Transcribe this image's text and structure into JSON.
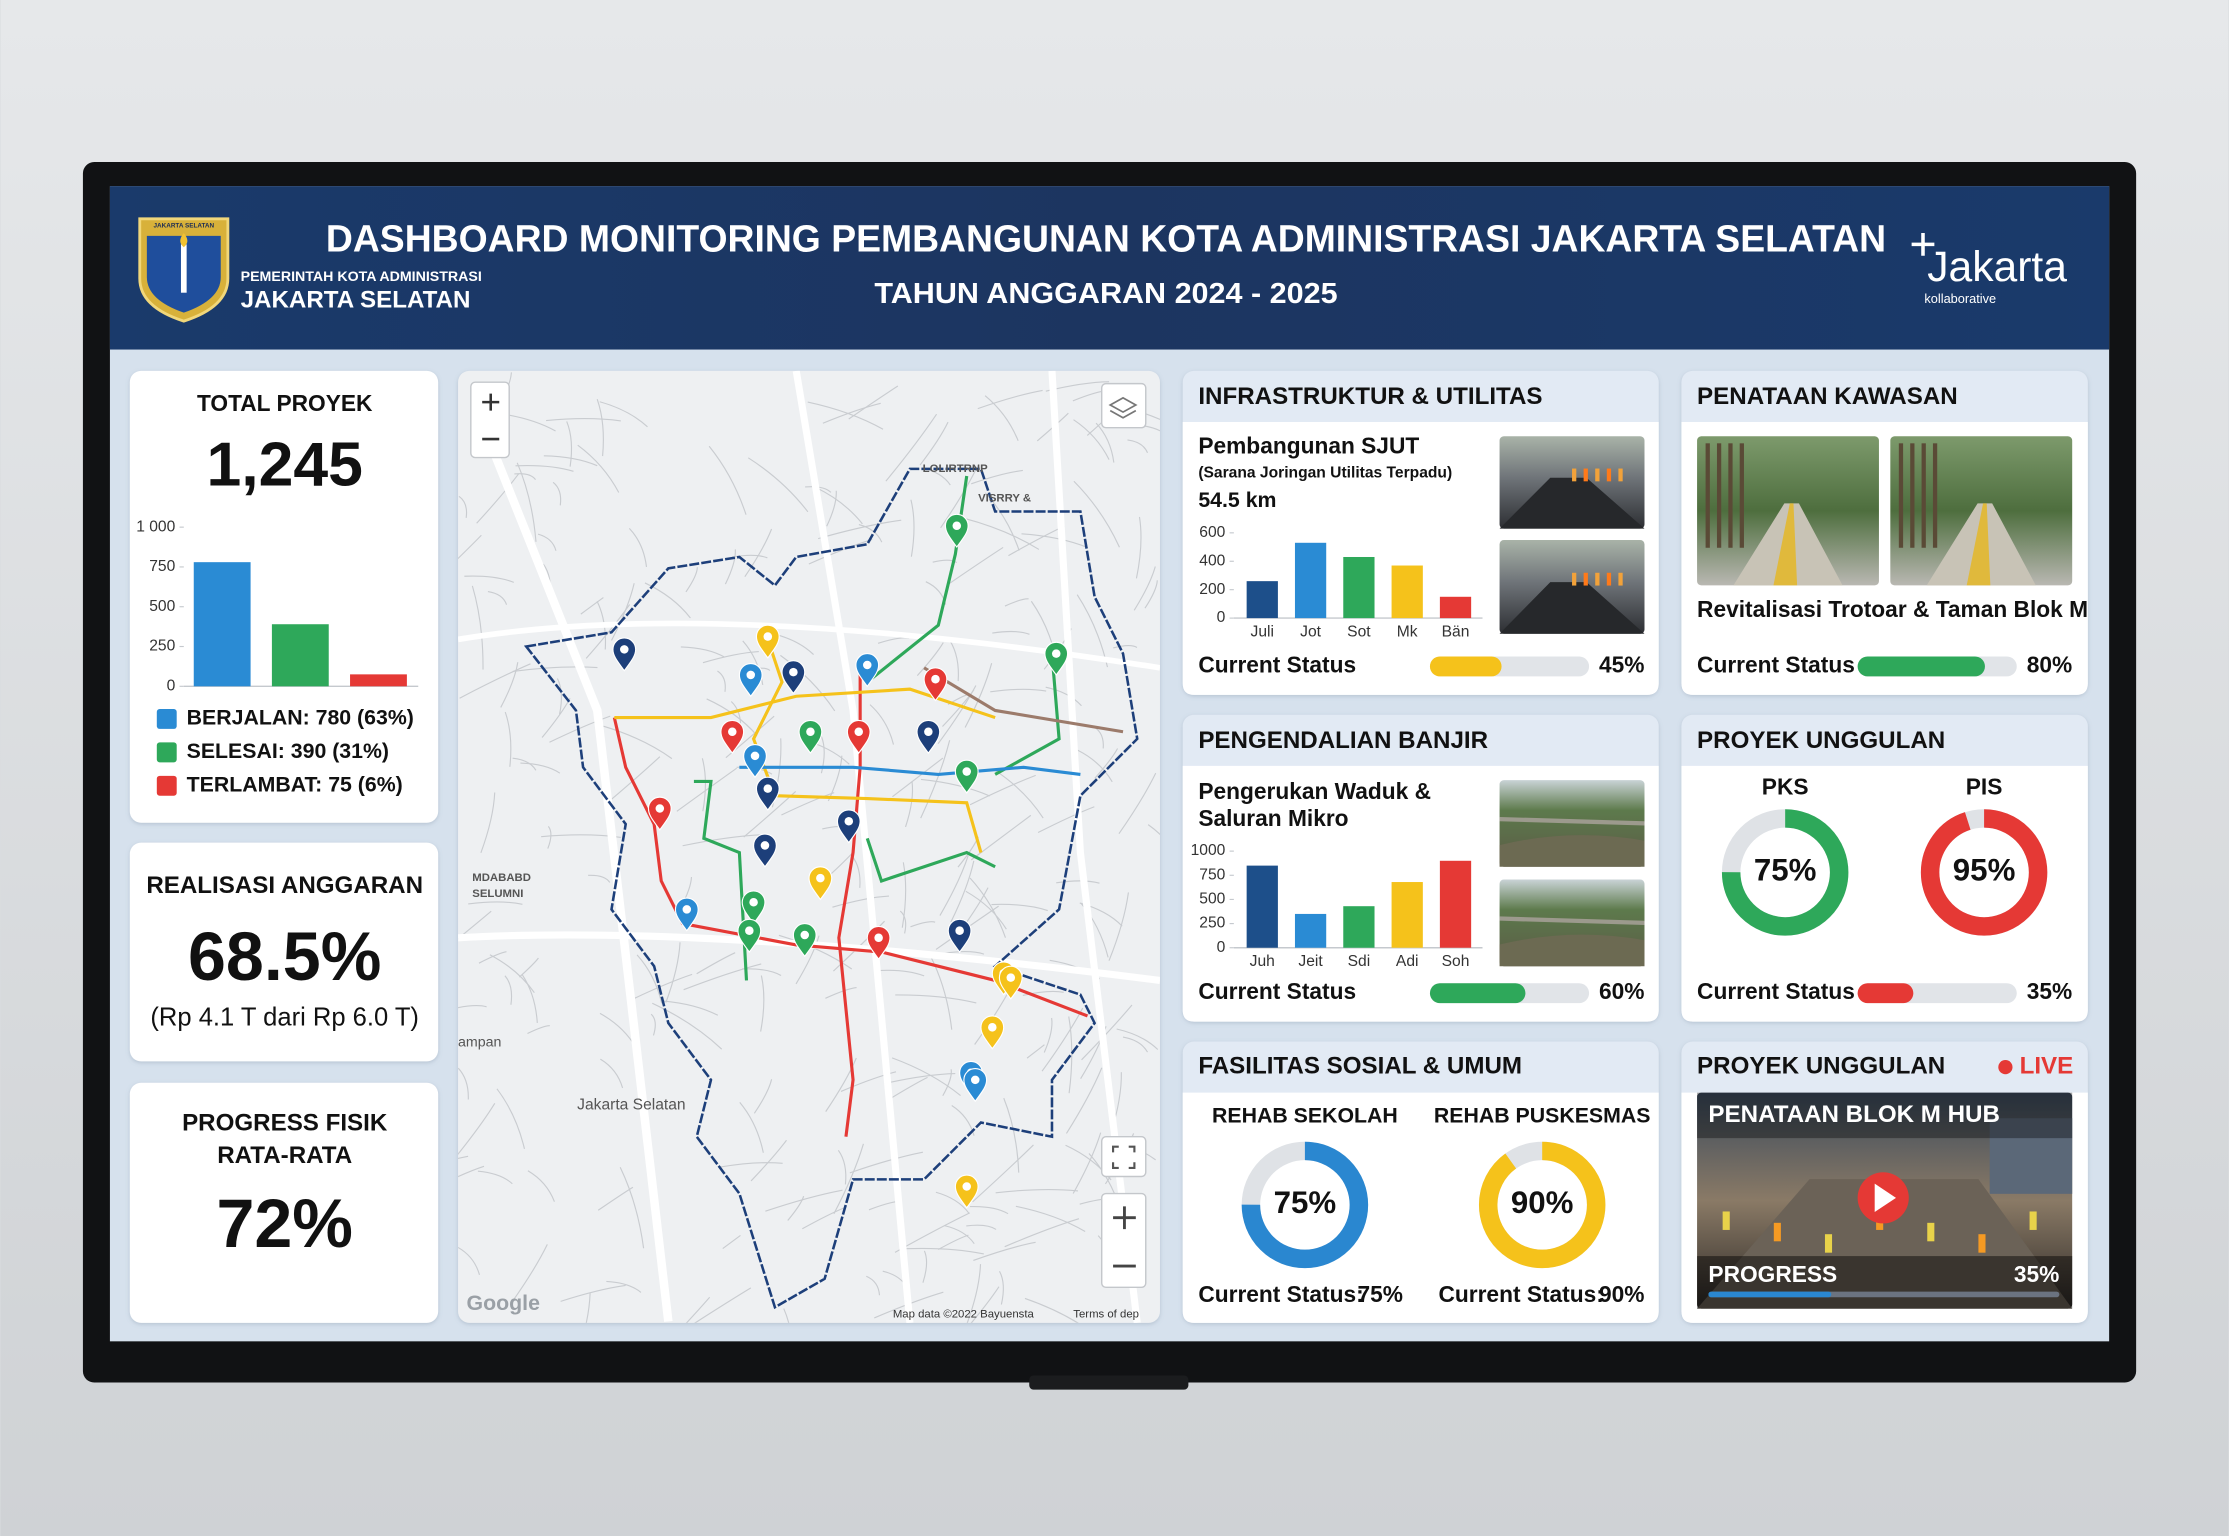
{
  "header": {
    "title": "DASHBOARD MONITORING PEMBANGUNAN KOTA ADMINISTRASI JAKARTA SELATAN",
    "subtitle": "TAHUN ANGGARAN 2024 - 2025",
    "emblem_text": "JAKARTA SELATAN",
    "org_line1": "PEMERINTAH KOTA ADMINISTRASI",
    "org_line2": "JAKARTA SELATAN",
    "brand": "Jakarta",
    "brand_sub": "kollaborative"
  },
  "total_proyek": {
    "title": "TOTAL PROYEK",
    "value": "1,245",
    "chart": {
      "type": "bar",
      "values": [
        780,
        390,
        75
      ],
      "colors": [
        "#2a8bd4",
        "#2ea85a",
        "#e53935"
      ],
      "legend": [
        "BERJALAN: 780 (63%)",
        "SELESAI: 390 (31%)",
        "TERLAMBAT: 75 (6%)"
      ],
      "ylim": [
        0,
        1000
      ],
      "yticks": [
        0,
        250,
        500,
        750,
        {
          "value": 1000,
          "label": "1 000"
        }
      ]
    }
  },
  "realisasi_anggaran": {
    "title": "REALISASI ANGGARAN",
    "value": "68.5%",
    "detail": "(Rp 4.1 T dari Rp 6.0 T)"
  },
  "progress_fisik": {
    "title_lines": [
      "PROGRESS FISIK",
      "RATA-RATA"
    ],
    "value": "72%"
  },
  "map": {
    "labels": [
      "LOLIRTRNP",
      "VISRRY &",
      "MDABABD",
      "SELUMNI",
      "ampan",
      "Jakarta Selatan"
    ],
    "logo": "Google",
    "attribution": "Map data ©2022 Bayuensta",
    "terms": "Terms of dep"
  },
  "infrastruktur": {
    "title": "INFRASTRUKTUR & UTILITAS",
    "item": "Pembangunan SJUT",
    "item_sub": "(Sarana Joringan Utilitas Terpadu)",
    "length": "54.5 km",
    "chart": {
      "type": "bar",
      "categories": [
        "Juli",
        "Jot",
        "Sot",
        "Mk",
        "Bän"
      ],
      "values": [
        260,
        530,
        430,
        370,
        150
      ],
      "colors": [
        "#1d4f8a",
        "#2a8bd4",
        "#2ea85a",
        "#f5c21b",
        "#e53935"
      ],
      "ylim": [
        0,
        600
      ],
      "yticks": [
        0,
        200,
        400,
        600
      ]
    },
    "status": {
      "label": "Current Status",
      "value": 45,
      "value_label": "45%",
      "color": "#f5c21b"
    }
  },
  "penataan_kawasan": {
    "title": "PENATAAN KAWASAN",
    "item": "Revitalisasi Trotoar & Taman Blok M",
    "status": {
      "label": "Current Status",
      "value": 80,
      "value_label": "80%",
      "color": "#2ea85a"
    }
  },
  "pengendalian_banjir": {
    "title": "PENGENDALIAN BANJIR",
    "item_lines": [
      "Pengerukan Waduk &",
      "Saluran Mikro"
    ],
    "chart": {
      "type": "bar",
      "categories": [
        "Juh",
        "Jeit",
        "Sdi",
        "Adi",
        "Soh"
      ],
      "values": [
        850,
        350,
        430,
        680,
        900
      ],
      "colors": [
        "#1d4f8a",
        "#2a8bd4",
        "#2ea85a",
        "#f5c21b",
        "#e53935"
      ],
      "ylim": [
        0,
        1000
      ],
      "yticks": [
        0,
        250,
        500,
        750,
        1000
      ]
    },
    "status": {
      "label": "Current Status",
      "value": 60,
      "value_label": "60%",
      "color": "#2ea85a"
    }
  },
  "proyek_unggulan": {
    "title": "PROYEK UNGGULAN",
    "donuts": [
      {
        "name": "PKS",
        "value": 75,
        "value_label": "75%",
        "color": "#2ea85a"
      },
      {
        "name": "PIS",
        "value": 95,
        "value_label": "95%",
        "color": "#e53935"
      }
    ],
    "status": {
      "label": "Current Status",
      "value": 35,
      "value_label": "35%",
      "color": "#e53935"
    }
  },
  "fasilitas_sosial": {
    "title": "FASILITAS SOSIAL & UMUM",
    "donuts": [
      {
        "name": "REHAB SEKOLAH",
        "value": 75,
        "value_label": "75%",
        "color": "#2a87d0",
        "status_label": "Current Status:"
      },
      {
        "name": "REHAB PUSKESMAS",
        "value": 90,
        "value_label": "90%",
        "color": "#f5c21b",
        "status_label": "Current Status:"
      }
    ]
  },
  "proyek_live": {
    "title": "PROYEK UNGGULAN",
    "live": "LIVE",
    "video_title": "PENATAAN BLOK M HUB",
    "progress": {
      "label": "PROGRESS",
      "value": 35,
      "value_label": "35%",
      "color": "#2a87d0"
    }
  }
}
